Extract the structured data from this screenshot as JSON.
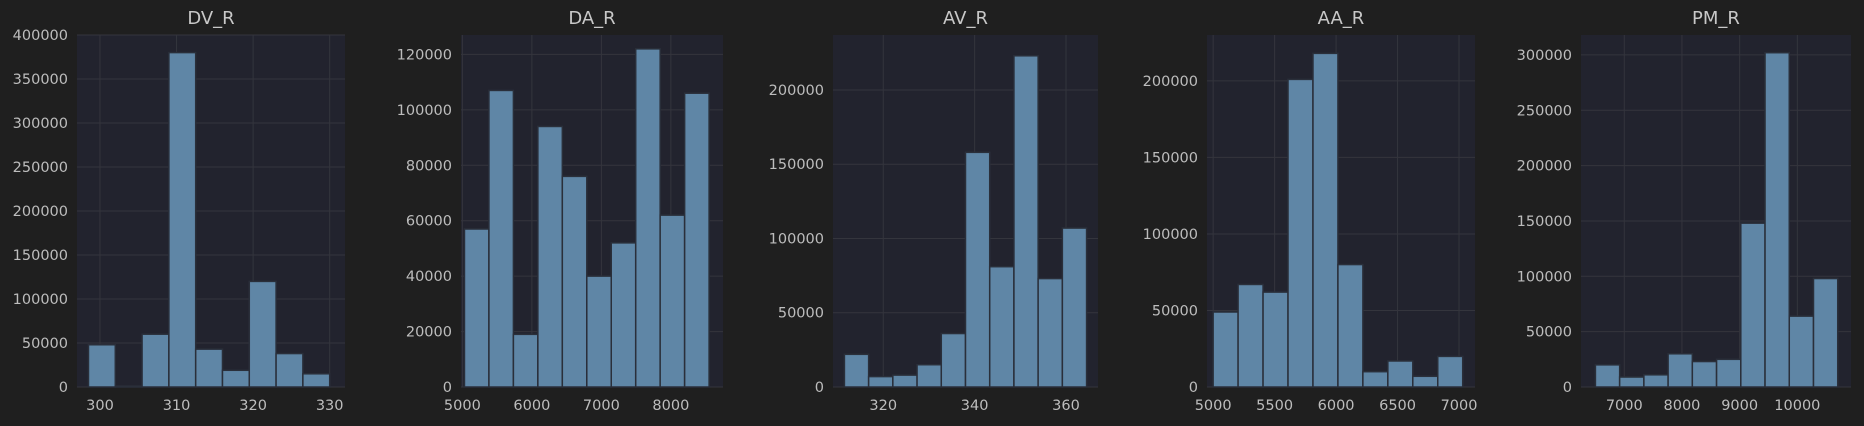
{
  "colors": {
    "figure_bg": "#1f1f1f",
    "axes_bg": "#22232e",
    "bar_fill": "#5f86a6",
    "bar_edge": "#2a2f3a",
    "grid": "#34353d",
    "text": "#bdbdbd"
  },
  "chart_data": [
    {
      "type": "bar",
      "title": "DV_R",
      "grid": true,
      "xlim": [
        297,
        332
      ],
      "ylim": [
        0,
        400000
      ],
      "xticks": [
        300,
        310,
        320,
        330
      ],
      "yticks": [
        0,
        50000,
        100000,
        150000,
        200000,
        250000,
        300000,
        350000,
        400000
      ],
      "bin_edges": [
        298.5,
        302.0,
        305.5,
        309.0,
        312.5,
        316.0,
        319.5,
        323.0,
        326.5,
        330.0
      ],
      "values": [
        48000,
        1000,
        60000,
        380000,
        43000,
        19000,
        120000,
        38000,
        15000
      ]
    },
    {
      "type": "bar",
      "title": "DA_R",
      "grid": true,
      "xlim": [
        4980,
        8750
      ],
      "ylim": [
        0,
        127000
      ],
      "xticks": [
        5000,
        6000,
        7000,
        8000
      ],
      "yticks": [
        0,
        20000,
        40000,
        60000,
        80000,
        100000,
        120000
      ],
      "bin_edges": [
        5030,
        5382,
        5734,
        6086,
        6438,
        6790,
        7142,
        7494,
        7846,
        8198,
        8550
      ],
      "values": [
        57000,
        107000,
        19000,
        94000,
        76000,
        40000,
        52000,
        122000,
        62000,
        106000
      ]
    },
    {
      "type": "bar",
      "title": "AV_R",
      "grid": true,
      "xlim": [
        309,
        367
      ],
      "ylim": [
        0,
        237000
      ],
      "xticks": [
        320,
        340,
        360
      ],
      "yticks": [
        0,
        50000,
        100000,
        150000,
        200000
      ],
      "bin_edges": [
        311.5,
        316.8,
        322.1,
        327.4,
        332.7,
        338.0,
        343.3,
        348.6,
        353.9,
        359.2,
        364.5
      ],
      "values": [
        22000,
        7000,
        8000,
        15000,
        36000,
        158000,
        81000,
        223000,
        73000,
        107000
      ]
    },
    {
      "type": "bar",
      "title": "AA_R",
      "grid": true,
      "xlim": [
        4950,
        7130
      ],
      "ylim": [
        0,
        230000
      ],
      "xticks": [
        5000,
        5500,
        6000,
        6500,
        7000
      ],
      "yticks": [
        0,
        50000,
        100000,
        150000,
        200000
      ],
      "bin_edges": [
        5000,
        5203,
        5406,
        5609,
        5812,
        6015,
        6218,
        6421,
        6624,
        6827,
        7030
      ],
      "values": [
        49000,
        67000,
        62000,
        201000,
        218000,
        80000,
        10000,
        17000,
        7000,
        20000
      ]
    },
    {
      "type": "bar",
      "title": "PM_R",
      "grid": true,
      "xlim": [
        6250,
        10930
      ],
      "ylim": [
        0,
        318000
      ],
      "xticks": [
        7000,
        8000,
        9000,
        10000
      ],
      "yticks": [
        0,
        50000,
        100000,
        150000,
        200000,
        250000,
        300000
      ],
      "bin_edges": [
        6500,
        6920,
        7340,
        7760,
        8180,
        8600,
        9020,
        9440,
        9860,
        10280,
        10700
      ],
      "values": [
        20000,
        9000,
        11000,
        30000,
        23000,
        25000,
        148000,
        302000,
        64000,
        98000
      ]
    }
  ]
}
